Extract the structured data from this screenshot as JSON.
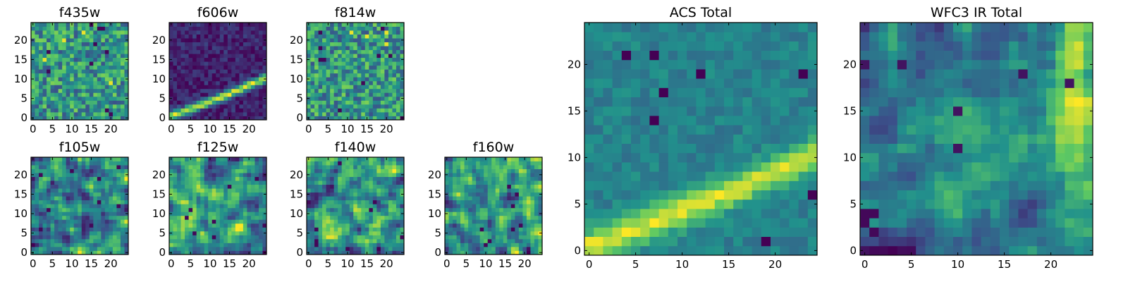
{
  "chart_data": [
    {
      "type": "heatmap",
      "title": "f435w",
      "pattern": "noise",
      "seed": 11,
      "xticks": [
        0,
        5,
        10,
        15,
        20
      ],
      "yticks": [
        0,
        5,
        10,
        15,
        20
      ],
      "grid_size": 25,
      "xlim": [
        -0.5,
        24.5
      ],
      "ylim": [
        -0.5,
        24.5
      ]
    },
    {
      "type": "heatmap",
      "title": "f606w",
      "pattern": "arc",
      "seed": 23,
      "xticks": [
        0,
        5,
        10,
        15,
        20
      ],
      "yticks": [
        0,
        5,
        10,
        15,
        20
      ],
      "grid_size": 25,
      "xlim": [
        -0.5,
        24.5
      ],
      "ylim": [
        -0.5,
        24.5
      ]
    },
    {
      "type": "heatmap",
      "title": "f814w",
      "pattern": "noise",
      "seed": 37,
      "xticks": [
        0,
        5,
        10,
        15,
        20
      ],
      "yticks": [
        0,
        5,
        10,
        15,
        20
      ],
      "grid_size": 25,
      "xlim": [
        -0.5,
        24.5
      ],
      "ylim": [
        -0.5,
        24.5
      ]
    },
    {
      "type": "heatmap",
      "title": "f105w",
      "pattern": "smooth",
      "seed": 41,
      "xticks": [
        0,
        5,
        10,
        15,
        20
      ],
      "yticks": [
        0,
        5,
        10,
        15,
        20
      ],
      "grid_size": 25,
      "xlim": [
        -0.5,
        24.5
      ],
      "ylim": [
        -0.5,
        24.5
      ]
    },
    {
      "type": "heatmap",
      "title": "f125w",
      "pattern": "smooth",
      "seed": 53,
      "xticks": [
        0,
        5,
        10,
        15,
        20
      ],
      "yticks": [
        0,
        5,
        10,
        15,
        20
      ],
      "grid_size": 25,
      "xlim": [
        -0.5,
        24.5
      ],
      "ylim": [
        -0.5,
        24.5
      ]
    },
    {
      "type": "heatmap",
      "title": "f140w",
      "pattern": "smooth",
      "seed": 67,
      "xticks": [
        0,
        5,
        10,
        15,
        20
      ],
      "yticks": [
        0,
        5,
        10,
        15,
        20
      ],
      "grid_size": 25,
      "xlim": [
        -0.5,
        24.5
      ],
      "ylim": [
        -0.5,
        24.5
      ]
    },
    {
      "type": "heatmap",
      "title": "f160w",
      "pattern": "smooth",
      "seed": 79,
      "xticks": [
        0,
        5,
        10,
        15,
        20
      ],
      "yticks": [
        0,
        5,
        10,
        15,
        20
      ],
      "grid_size": 25,
      "xlim": [
        -0.5,
        24.5
      ],
      "ylim": [
        -0.5,
        24.5
      ]
    },
    {
      "type": "heatmap",
      "title": "ACS Total",
      "pattern": "arc-soft",
      "seed": 83,
      "xticks": [
        0,
        5,
        10,
        15,
        20
      ],
      "yticks": [
        0,
        5,
        10,
        15,
        20
      ],
      "grid_size": 25,
      "xlim": [
        -0.5,
        24.5
      ],
      "ylim": [
        -0.5,
        24.5
      ]
    },
    {
      "type": "heatmap",
      "title": "WFC3 IR Total",
      "pattern": "ir",
      "seed": 97,
      "xticks": [
        0,
        5,
        10,
        15,
        20
      ],
      "yticks": [
        0,
        5,
        10,
        15,
        20
      ],
      "grid_size": 25,
      "xlim": [
        -0.5,
        24.5
      ],
      "ylim": [
        -0.5,
        24.5
      ]
    }
  ],
  "colormap": [
    "#440154",
    "#3b528b",
    "#21918c",
    "#5ec962",
    "#fde725"
  ]
}
